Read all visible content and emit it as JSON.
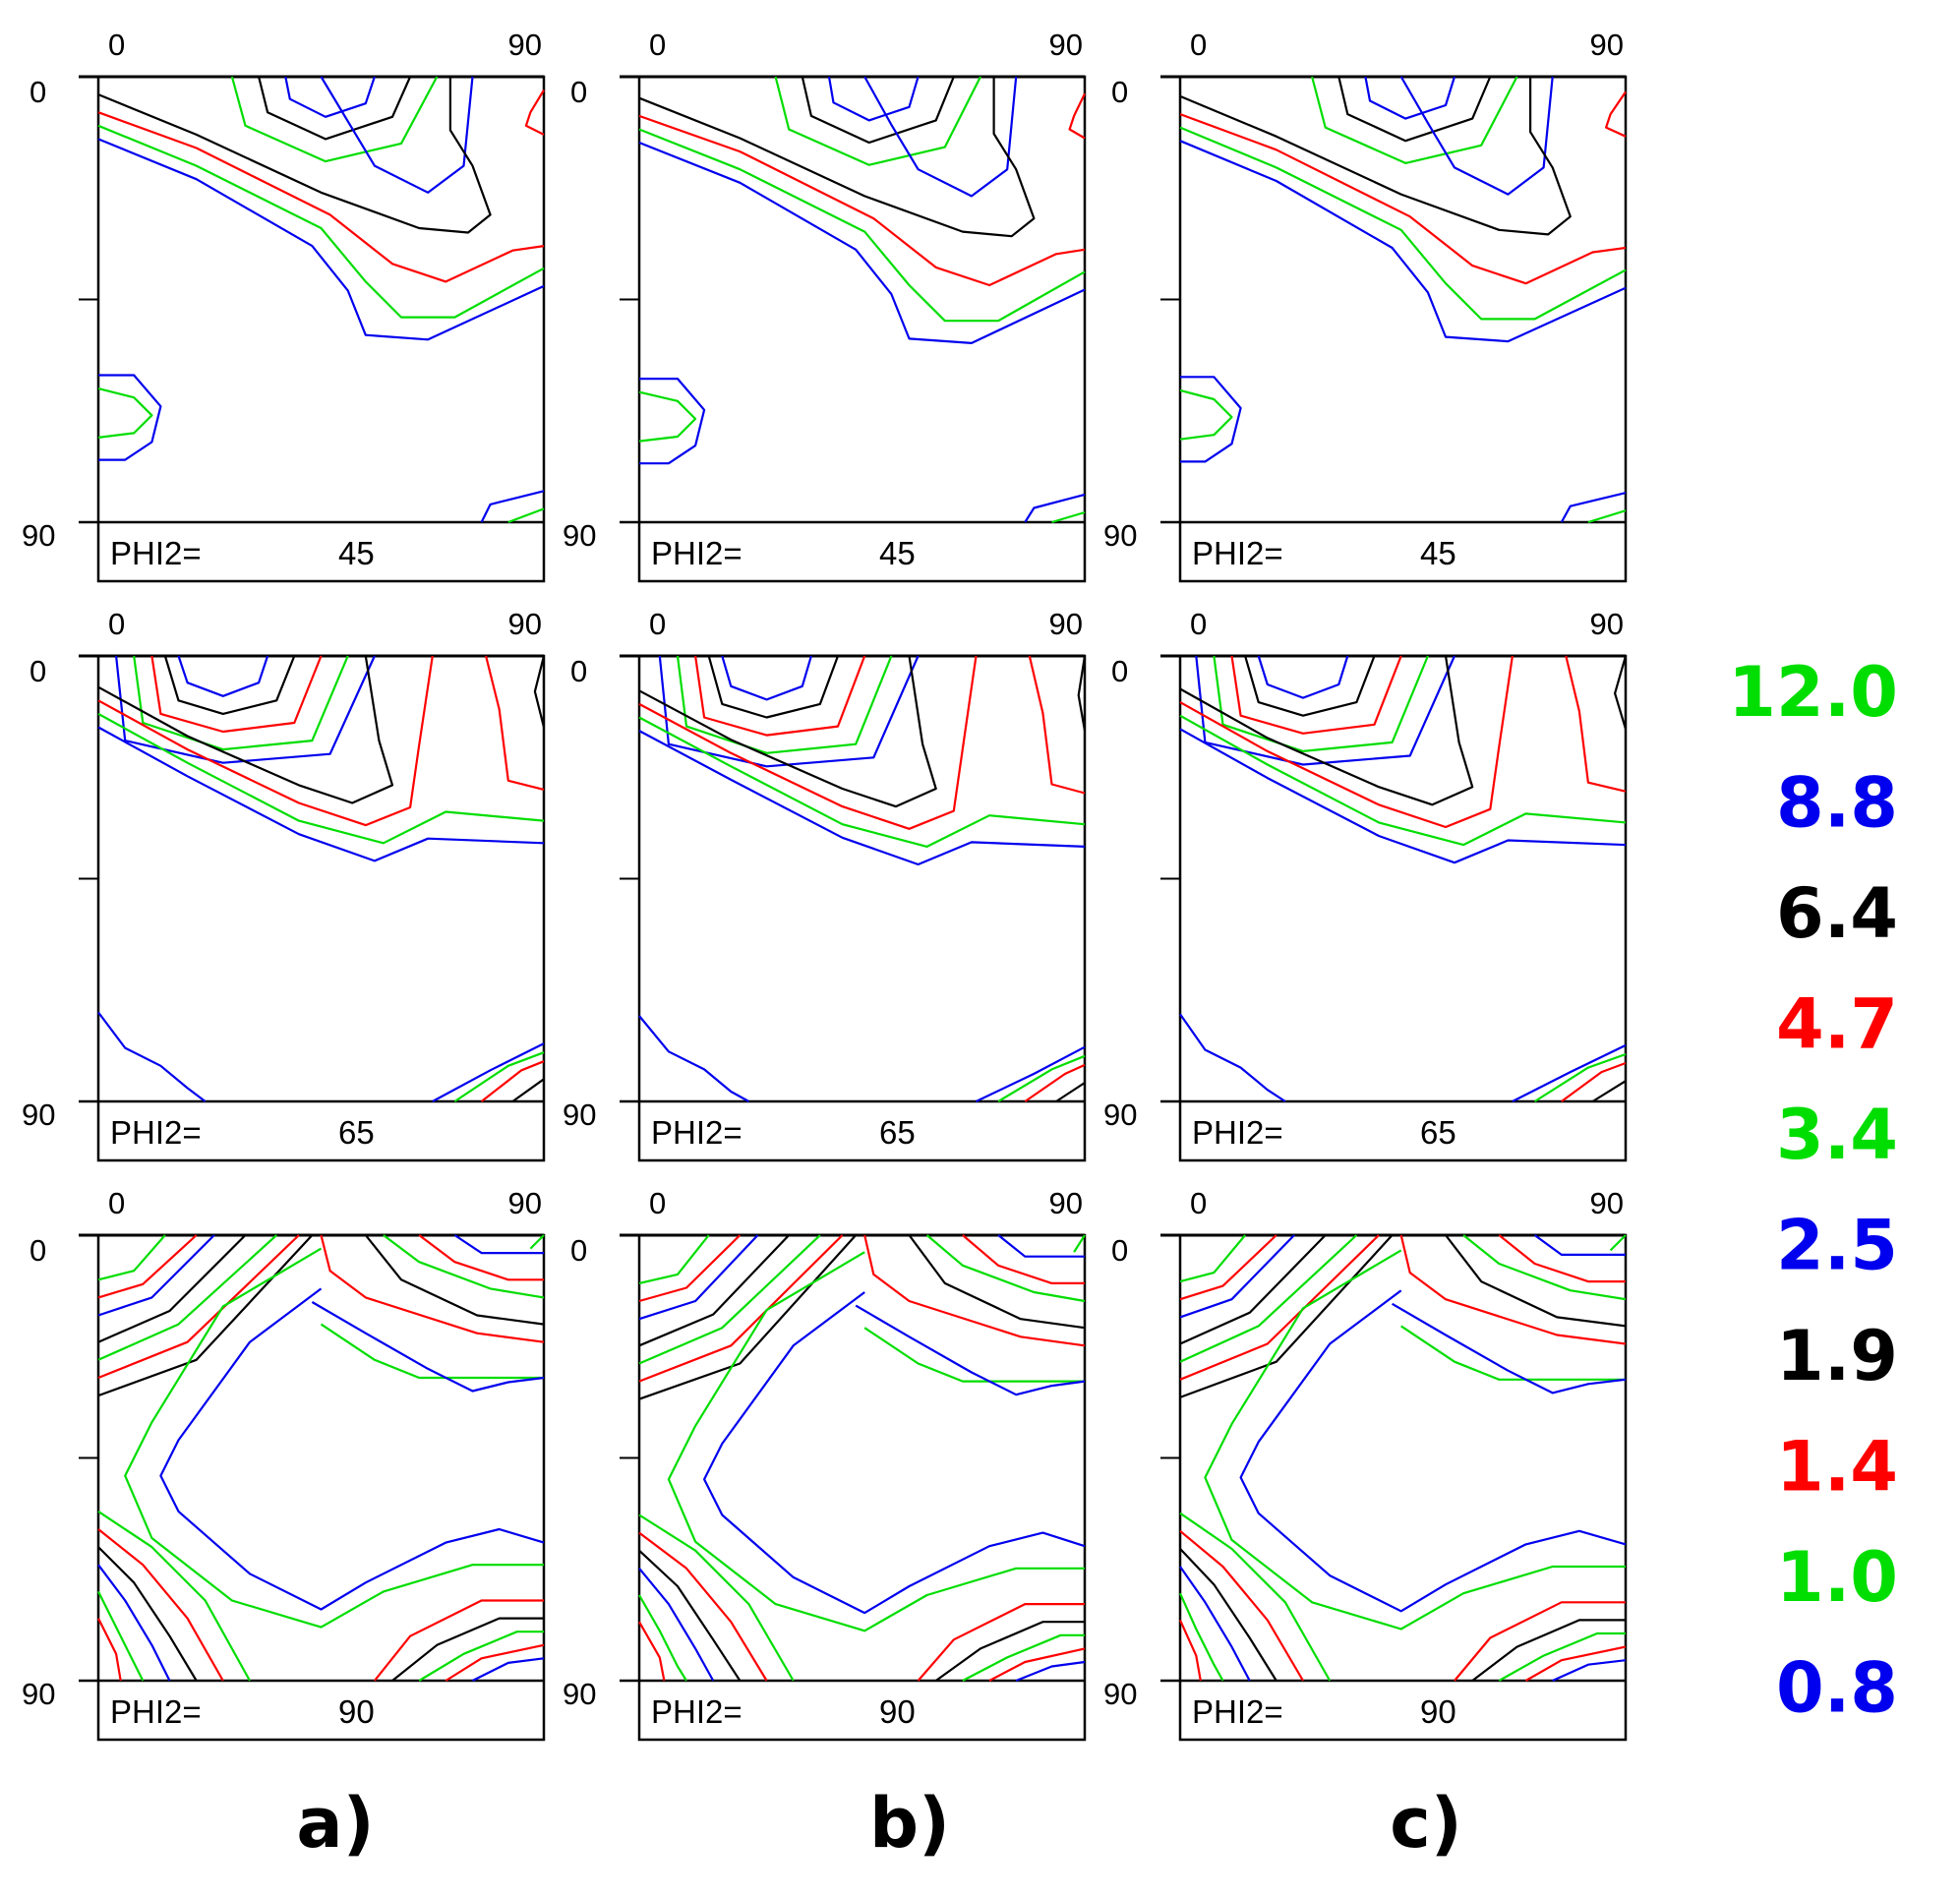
{
  "chart_data": {
    "type": "contour",
    "description_labels": {
      "x_axis_min": "0",
      "x_axis_max": "90",
      "y_axis_min": "0",
      "y_axis_max": "90",
      "section_prefix": "PHI2="
    },
    "xlim": [
      0,
      90
    ],
    "ylim": [
      0,
      90
    ],
    "columns": [
      "a)",
      "b)",
      "c)"
    ],
    "sections": [
      "45",
      "65",
      "90"
    ],
    "contour_levels": [
      {
        "value": "12.0",
        "color": "#00dd00"
      },
      {
        "value": "8.8",
        "color": "#0000ee"
      },
      {
        "value": "6.4",
        "color": "#000000"
      },
      {
        "value": "4.7",
        "color": "#ff0000"
      },
      {
        "value": "3.4",
        "color": "#00dd00"
      },
      {
        "value": "2.5",
        "color": "#0000ee"
      },
      {
        "value": "1.9",
        "color": "#000000"
      },
      {
        "value": "1.4",
        "color": "#ff0000"
      },
      {
        "value": "1.0",
        "color": "#00dd00"
      },
      {
        "value": "0.8",
        "color": "#0000ee"
      }
    ]
  }
}
